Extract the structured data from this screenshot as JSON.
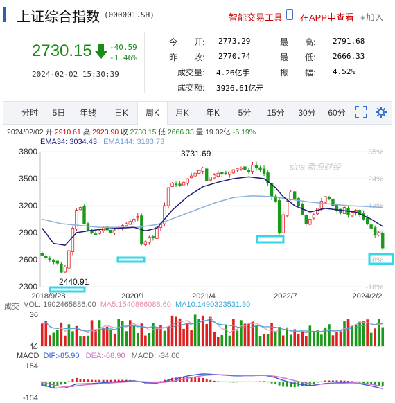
{
  "header": {
    "title": "上证综合指数",
    "code": "(000001.SH)",
    "tool_label": "智能交易工具",
    "app_label": "在APP中查看",
    "add_label": "加入"
  },
  "quote": {
    "price": "2730.15",
    "change": "-40.59",
    "change_pct": "-1.46%",
    "datetime": "2024-02-02  15:30:39"
  },
  "stats": [
    {
      "label": "今　　开:",
      "value": "2773.29",
      "color": "#d00"
    },
    {
      "label": "最　　高:",
      "value": "2791.68",
      "color": "#d00"
    },
    {
      "label": "昨　　收:",
      "value": "2770.74",
      "color": "#333"
    },
    {
      "label": "最　　低:",
      "value": "2666.33",
      "color": "#1a8a1a"
    },
    {
      "label": "成交量:",
      "value": "4.26亿手",
      "color": "#333"
    },
    {
      "label": "振　　幅:",
      "value": "4.52%",
      "color": "#333"
    },
    {
      "label": "成交额:",
      "value": "3926.61亿元",
      "color": "#333"
    }
  ],
  "tabs": [
    "分时",
    "5日",
    "年线",
    "日K",
    "周K",
    "月K",
    "年K",
    "5分",
    "15分",
    "30分",
    "60分"
  ],
  "active_tab": 4,
  "info_line": {
    "date": "2024/02/02",
    "open_l": "开",
    "open": "2910.61",
    "high_l": "高",
    "high": "2923.90",
    "close_l": "收",
    "close": "2730.15",
    "low_l": "低",
    "low": "2666.33",
    "vol_l": "量",
    "vol": "19.02亿",
    "chg": "-6.19%"
  },
  "ema": {
    "ema34_label": "EMA34:",
    "ema34": "3034.43",
    "ema144_label": "EMA144:",
    "ema144": "3183.73",
    "ema34_color": "#1a1a80",
    "ema144_color": "#7aa0d0"
  },
  "vol_legend": {
    "title": "成交",
    "vol_label": "VOL:",
    "vol": "1902465886.00",
    "ma5_label": "MA5:",
    "ma5": "1540866088.60",
    "ma10_label": "MA10:",
    "ma10": "1490323531.30",
    "ma5_color": "#e98fb4",
    "ma10_color": "#3aa6d8"
  },
  "macd_legend": {
    "title": "MACD",
    "dif_label": "DIF:",
    "dif": "-85.90",
    "dea_label": "DEA:",
    "dea": "-68.90",
    "macd_label": "MACD:",
    "macd": "-34.00",
    "dif_color": "#3a5ad8",
    "dea_color": "#d070c8"
  },
  "watermark": "sina 新浪财经",
  "colors": {
    "up": "#e02020",
    "down": "#1a9a1a",
    "highlight": "#36d6e8"
  },
  "chart_data": {
    "type": "candlestick",
    "yticks": [
      "3800",
      "3500",
      "3200",
      "2900",
      "2600",
      "2300"
    ],
    "y_right": [
      "35%",
      "24%",
      "13%",
      "2%",
      "-8%",
      "-18%"
    ],
    "ylim": [
      2300,
      3800
    ],
    "xticks": [
      "2018/9/28",
      "2020/1",
      "2021/4",
      "2022/7",
      "2024/2/2"
    ],
    "annotations": {
      "max": "3731.69",
      "min": "2440.91"
    },
    "vol_axis": [
      "36",
      "亿"
    ],
    "macd_axis": [
      "154",
      "-154"
    ],
    "price_path": [
      [
        0,
        2650
      ],
      [
        2,
        2600
      ],
      [
        4,
        2560
      ],
      [
        5,
        2460
      ],
      [
        6,
        2520
      ],
      [
        7,
        2700
      ],
      [
        8,
        2950
      ],
      [
        9,
        3150
      ],
      [
        10,
        3180
      ],
      [
        11,
        3000
      ],
      [
        12,
        2920
      ],
      [
        14,
        2880
      ],
      [
        16,
        2960
      ],
      [
        18,
        2900
      ],
      [
        20,
        2960
      ],
      [
        22,
        3000
      ],
      [
        24,
        3050
      ],
      [
        25,
        3080
      ],
      [
        26,
        2780
      ],
      [
        27,
        2800
      ],
      [
        28,
        2850
      ],
      [
        29,
        2850
      ],
      [
        30,
        2960
      ],
      [
        31,
        3000
      ],
      [
        32,
        3200
      ],
      [
        33,
        3400
      ],
      [
        34,
        3450
      ],
      [
        36,
        3420
      ],
      [
        38,
        3500
      ],
      [
        40,
        3560
      ],
      [
        42,
        3620
      ],
      [
        43,
        3480
      ],
      [
        44,
        3520
      ],
      [
        46,
        3560
      ],
      [
        48,
        3550
      ],
      [
        50,
        3600
      ],
      [
        52,
        3620
      ],
      [
        54,
        3580
      ],
      [
        55,
        3650
      ],
      [
        57,
        3600
      ],
      [
        58,
        3550
      ],
      [
        59,
        3450
      ],
      [
        60,
        3300
      ],
      [
        61,
        3250
      ],
      [
        62,
        2900
      ],
      [
        63,
        3100
      ],
      [
        64,
        3250
      ],
      [
        65,
        3350
      ],
      [
        66,
        3280
      ],
      [
        67,
        3200
      ],
      [
        68,
        3100
      ],
      [
        69,
        3000
      ],
      [
        70,
        3050
      ],
      [
        71,
        3100
      ],
      [
        72,
        3170
      ],
      [
        73,
        3250
      ],
      [
        74,
        3300
      ],
      [
        75,
        3280
      ],
      [
        76,
        3200
      ],
      [
        77,
        3150
      ],
      [
        78,
        3120
      ],
      [
        79,
        3180
      ],
      [
        80,
        3100
      ],
      [
        82,
        3150
      ],
      [
        84,
        3050
      ],
      [
        85,
        3000
      ],
      [
        86,
        2950
      ],
      [
        87,
        2880
      ],
      [
        88,
        2900
      ],
      [
        89,
        2730
      ]
    ],
    "ema34": [
      [
        0,
        2950
      ],
      [
        3,
        2780
      ],
      [
        6,
        2760
      ],
      [
        9,
        2900
      ],
      [
        12,
        2920
      ],
      [
        16,
        2940
      ],
      [
        20,
        2950
      ],
      [
        24,
        2960
      ],
      [
        27,
        2920
      ],
      [
        30,
        2950
      ],
      [
        34,
        3150
      ],
      [
        38,
        3300
      ],
      [
        42,
        3410
      ],
      [
        46,
        3460
      ],
      [
        50,
        3500
      ],
      [
        54,
        3520
      ],
      [
        58,
        3500
      ],
      [
        61,
        3400
      ],
      [
        63,
        3300
      ],
      [
        66,
        3200
      ],
      [
        70,
        3130
      ],
      [
        74,
        3170
      ],
      [
        78,
        3150
      ],
      [
        82,
        3130
      ],
      [
        86,
        3050
      ],
      [
        89,
        2970
      ]
    ],
    "ema144": [
      [
        0,
        3050
      ],
      [
        5,
        3000
      ],
      [
        10,
        2980
      ],
      [
        15,
        2960
      ],
      [
        20,
        2960
      ],
      [
        25,
        2960
      ],
      [
        30,
        2990
      ],
      [
        35,
        3070
      ],
      [
        40,
        3150
      ],
      [
        45,
        3230
      ],
      [
        50,
        3290
      ],
      [
        55,
        3310
      ],
      [
        60,
        3300
      ],
      [
        65,
        3270
      ],
      [
        70,
        3240
      ],
      [
        75,
        3220
      ],
      [
        80,
        3200
      ],
      [
        85,
        3190
      ],
      [
        89,
        3180
      ]
    ]
  }
}
